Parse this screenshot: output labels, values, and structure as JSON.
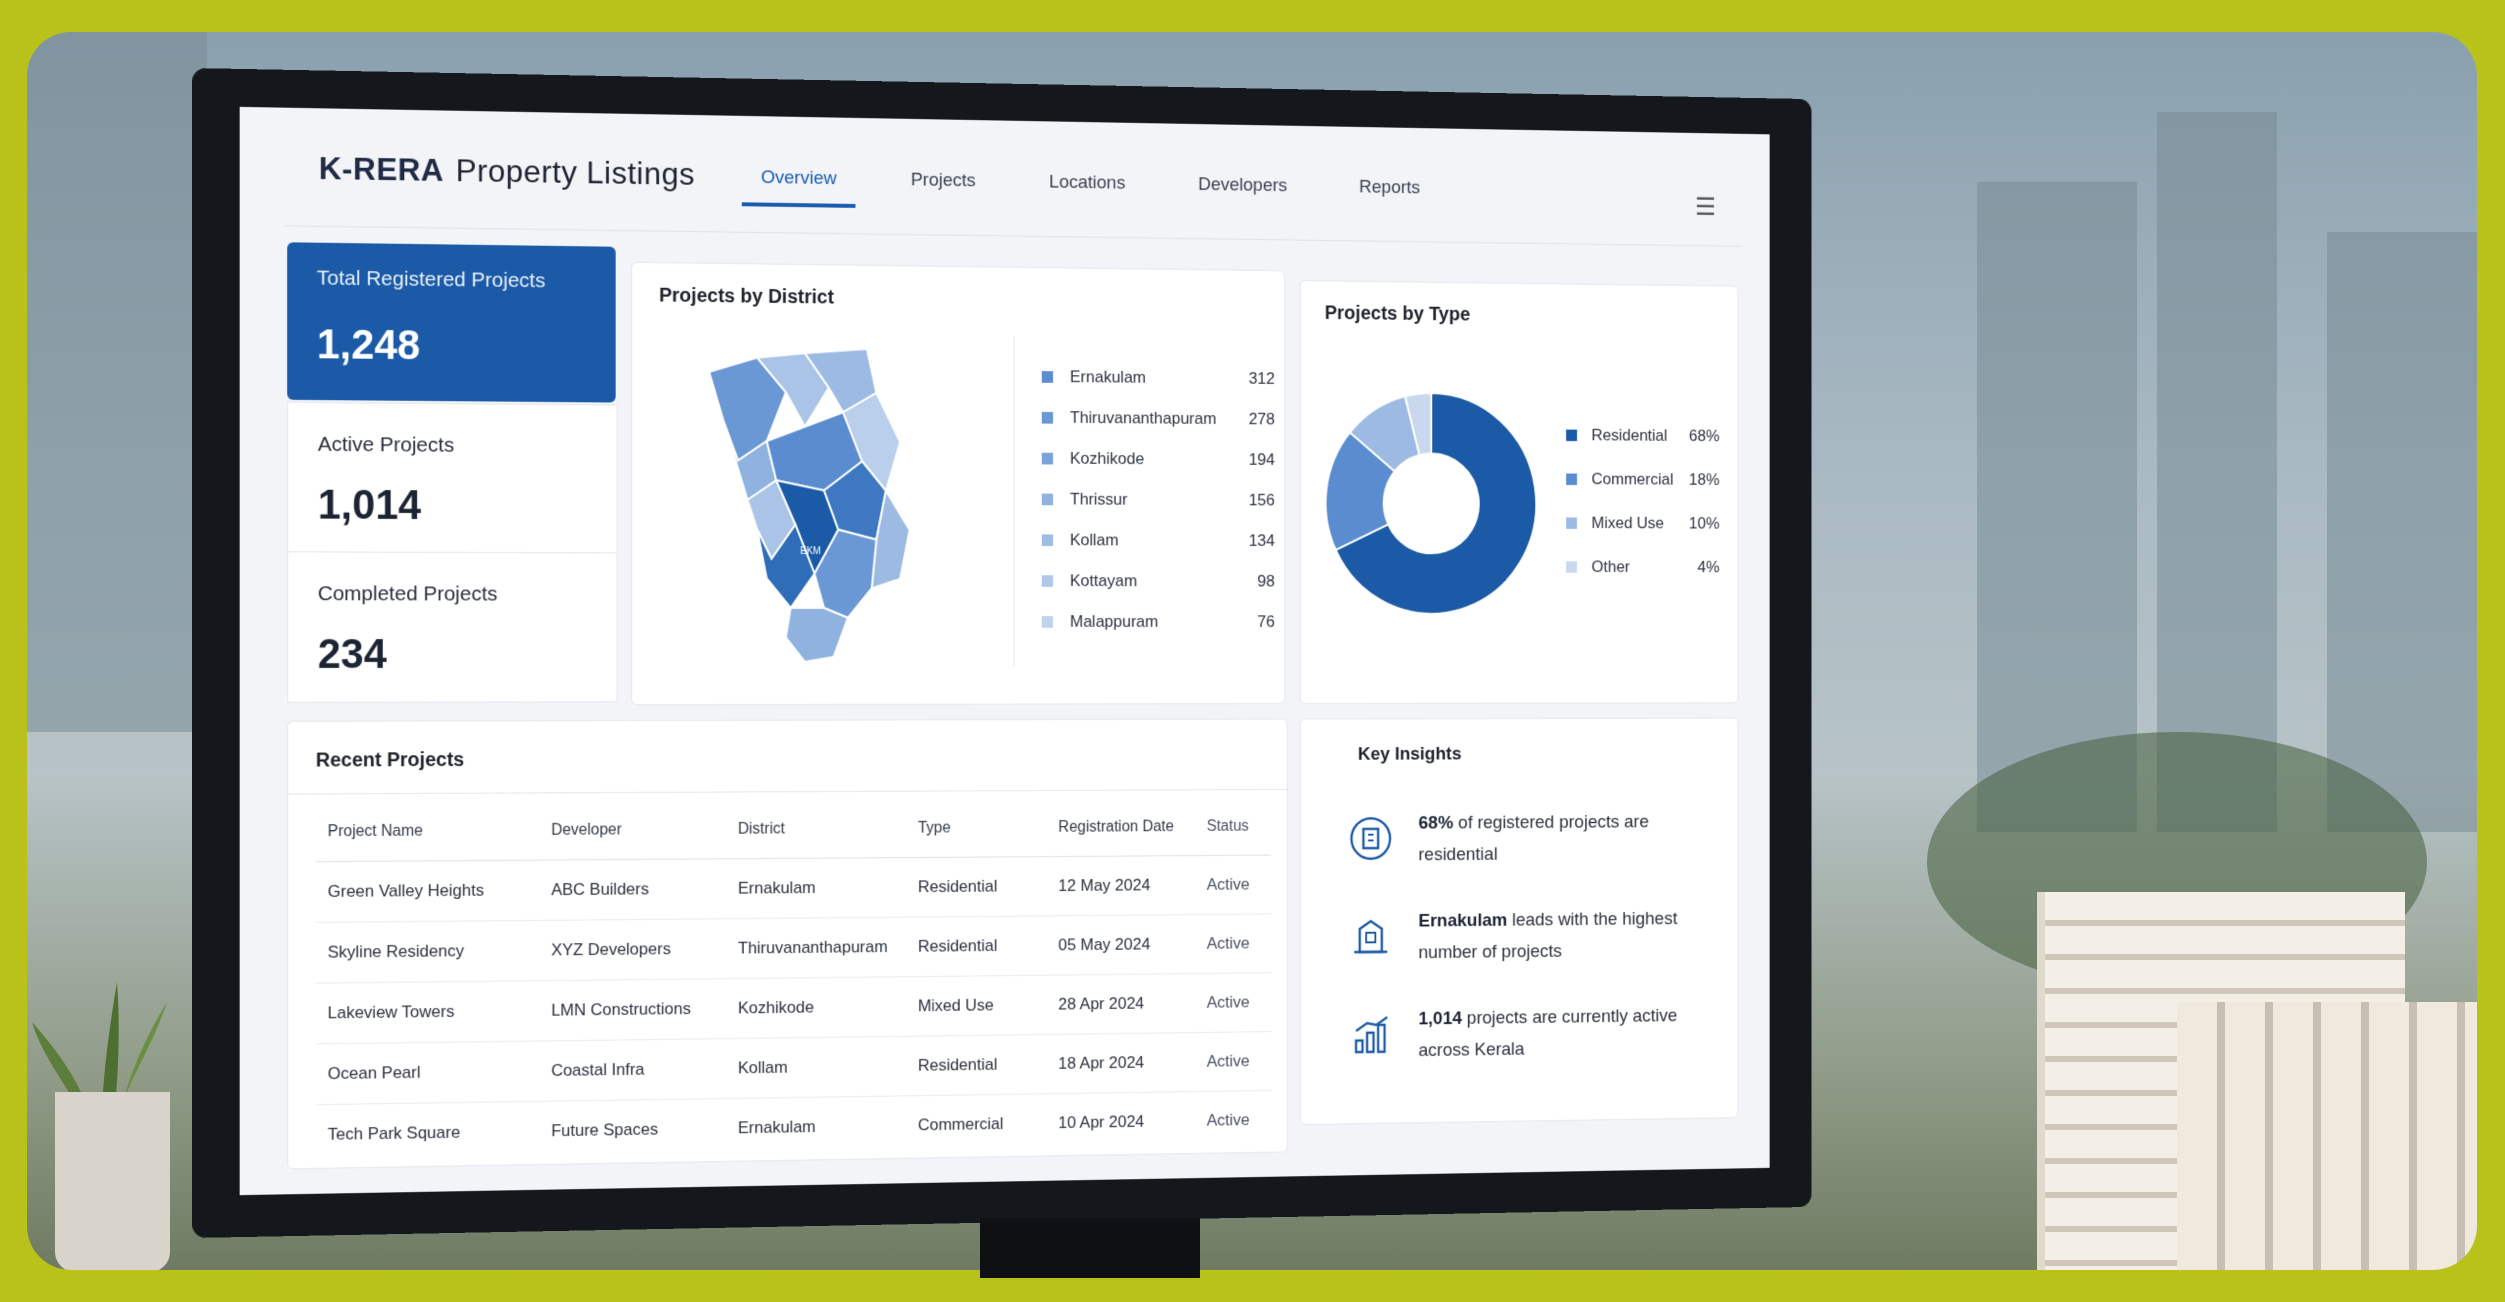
{
  "app": {
    "brand": "K-RERA",
    "title": "Property Listings"
  },
  "nav": {
    "tabs": [
      "Overview",
      "Projects",
      "Locations",
      "Developers",
      "Reports"
    ],
    "active": "Overview"
  },
  "kpis": [
    {
      "label": "Total Registered Projects",
      "value": "1,248"
    },
    {
      "label": "Active Projects",
      "value": "1,014"
    },
    {
      "label": "Completed Projects",
      "value": "234"
    }
  ],
  "district_card": {
    "title": "Projects by District",
    "map_label": "EKM",
    "items": [
      {
        "name": "Ernakulam",
        "value": "312",
        "color": "#5b8ccf"
      },
      {
        "name": "Thiruvananthapuram",
        "value": "278",
        "color": "#6a98d4"
      },
      {
        "name": "Kozhikode",
        "value": "194",
        "color": "#7aa4d9"
      },
      {
        "name": "Thrissur",
        "value": "156",
        "color": "#8fb2df"
      },
      {
        "name": "Kollam",
        "value": "134",
        "color": "#9fbde3"
      },
      {
        "name": "Kottayam",
        "value": "98",
        "color": "#afc8e8"
      },
      {
        "name": "Malappuram",
        "value": "76",
        "color": "#bfd3ed"
      }
    ]
  },
  "type_card": {
    "title": "Projects by Type",
    "items": [
      {
        "name": "Residential",
        "value": "68%",
        "share": 68,
        "color": "#1b5aa6"
      },
      {
        "name": "Commercial",
        "value": "18%",
        "share": 18,
        "color": "#5b8ccf"
      },
      {
        "name": "Mixed Use",
        "value": "10%",
        "share": 10,
        "color": "#9dbbe2"
      },
      {
        "name": "Other",
        "value": "4%",
        "share": 4,
        "color": "#c9d8ec"
      }
    ]
  },
  "recent": {
    "title": "Recent Projects",
    "columns": [
      "Project Name",
      "Developer",
      "District",
      "Type",
      "Registration Date",
      "Status"
    ],
    "rows": [
      [
        "Green Valley Heights",
        "ABC Builders",
        "Ernakulam",
        "Residential",
        "12 May 2024",
        "Active"
      ],
      [
        "Skyline Residency",
        "XYZ Developers",
        "Thiruvananthapuram",
        "Residential",
        "05 May 2024",
        "Active"
      ],
      [
        "Lakeview Towers",
        "LMN Constructions",
        "Kozhikode",
        "Mixed Use",
        "28 Apr 2024",
        "Active"
      ],
      [
        "Ocean Pearl",
        "Coastal Infra",
        "Kollam",
        "Residential",
        "18 Apr 2024",
        "Active"
      ],
      [
        "Tech Park Square",
        "Future Spaces",
        "Ernakulam",
        "Commercial",
        "10 Apr 2024",
        "Active"
      ]
    ]
  },
  "insights": {
    "title": "Key Insights",
    "items": [
      {
        "icon": "building-icon",
        "bold": "68%",
        "text": " of registered projects are residential"
      },
      {
        "icon": "city-icon",
        "bold": "Ernakulam",
        "text": " leads with the highest number of projects"
      },
      {
        "icon": "growth-chart-icon",
        "bold": "1,014",
        "text": " projects are currently active across Kerala"
      }
    ]
  }
}
